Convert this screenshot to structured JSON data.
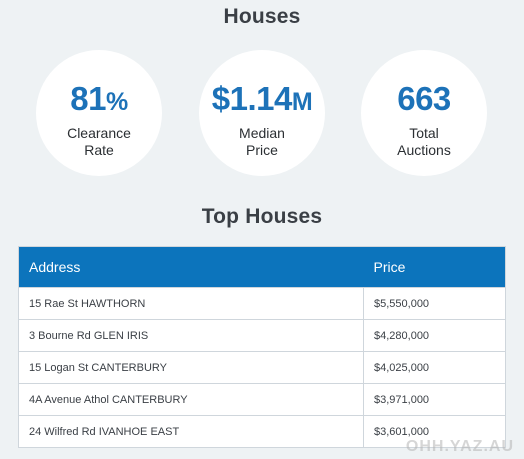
{
  "houses_title": "Houses",
  "stats": [
    {
      "value": "81",
      "unit": "%",
      "label_line1": "Clearance",
      "label_line2": "Rate"
    },
    {
      "value": "$1.14",
      "unit": "M",
      "label_line1": "Median",
      "label_line2": "Price"
    },
    {
      "value": "663",
      "unit": "",
      "label_line1": "Total",
      "label_line2": "Auctions"
    }
  ],
  "top_houses_title": "Top Houses",
  "table": {
    "columns": [
      "Address",
      "Price"
    ],
    "rows": [
      {
        "address": "15 Rae St HAWTHORN",
        "price": "$5,550,000"
      },
      {
        "address": "3 Bourne Rd GLEN IRIS",
        "price": "$4,280,000"
      },
      {
        "address": "15 Logan St CANTERBURY",
        "price": "$4,025,000"
      },
      {
        "address": "4A Avenue Athol CANTERBURY",
        "price": "$3,971,000"
      },
      {
        "address": "24 Wilfred Rd IVANHOE EAST",
        "price": "$3,601,000"
      }
    ]
  },
  "watermark": "OHH.YAZ.AU",
  "colors": {
    "accent": "#1d72b8",
    "header_bg": "#0c74bc",
    "page_bg": "#eef2f4"
  }
}
